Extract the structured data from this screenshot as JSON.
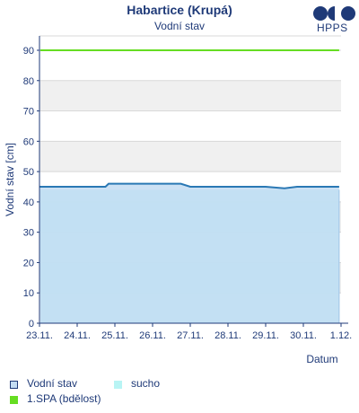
{
  "header": {
    "title": "Habartice (Krupá)",
    "subtitle": "Vodní stav",
    "logo_text": "HPPS"
  },
  "legend": {
    "items": [
      {
        "label": "Vodní stav",
        "color": "#c3dcf2",
        "border": "#1f3a78"
      },
      {
        "label": "sucho",
        "color": "#b8f4f4"
      },
      {
        "label": "1.SPA (bdělost)",
        "color": "#66dd22"
      }
    ]
  },
  "colors": {
    "water_line": "#2a78b4",
    "water_fill": "#c3dcf2",
    "drought_fill": "#b8f4f4",
    "spa1": "#66dd22",
    "axis": "#1f3a78",
    "band": "#f0f0f0",
    "grid": "#d8d8d8"
  },
  "chart_data": {
    "type": "line",
    "title": "Vodní stav",
    "xlabel": "Datum",
    "ylabel": "Vodní stav [cm]",
    "ylim": [
      0,
      90
    ],
    "yticks": [
      0,
      10,
      20,
      30,
      40,
      50,
      60,
      70,
      80,
      90
    ],
    "xlim_days": [
      0,
      8
    ],
    "xticks": [
      "23.11.",
      "24.11.",
      "25.11.",
      "26.11.",
      "27.11.",
      "28.11.",
      "29.11.",
      "30.11.",
      "1.12."
    ],
    "grid": true,
    "series": [
      {
        "name": "Vodní stav",
        "kind": "line",
        "points": [
          [
            "23.11. 00:00",
            45
          ],
          [
            "24.11. 00:00",
            45
          ],
          [
            "24.11. 18:00",
            45
          ],
          [
            "24.11. 20:00",
            46
          ],
          [
            "25.11. 08:00",
            46
          ],
          [
            "25.11. 10:00",
            46
          ],
          [
            "26.11. 00:00",
            46
          ],
          [
            "26.11. 08:00",
            46
          ],
          [
            "26.11. 18:00",
            46
          ],
          [
            "27.11. 00:00",
            45
          ],
          [
            "27.11. 12:00",
            45
          ],
          [
            "28.11. 00:00",
            45
          ],
          [
            "28.11. 06:00",
            45
          ],
          [
            "29.11. 00:00",
            45
          ],
          [
            "29.11. 12:00",
            44.5
          ],
          [
            "29.11. 20:00",
            45
          ],
          [
            "30.11. 00:00",
            45
          ],
          [
            "30.11. 12:00",
            45
          ],
          [
            "30.11. 18:00",
            45
          ],
          [
            "1.12. 00:00",
            45
          ]
        ]
      },
      {
        "name": "sucho",
        "kind": "area",
        "value": 44
      },
      {
        "name": "1.SPA (bdělost)",
        "kind": "threshold",
        "value": 90
      }
    ]
  }
}
